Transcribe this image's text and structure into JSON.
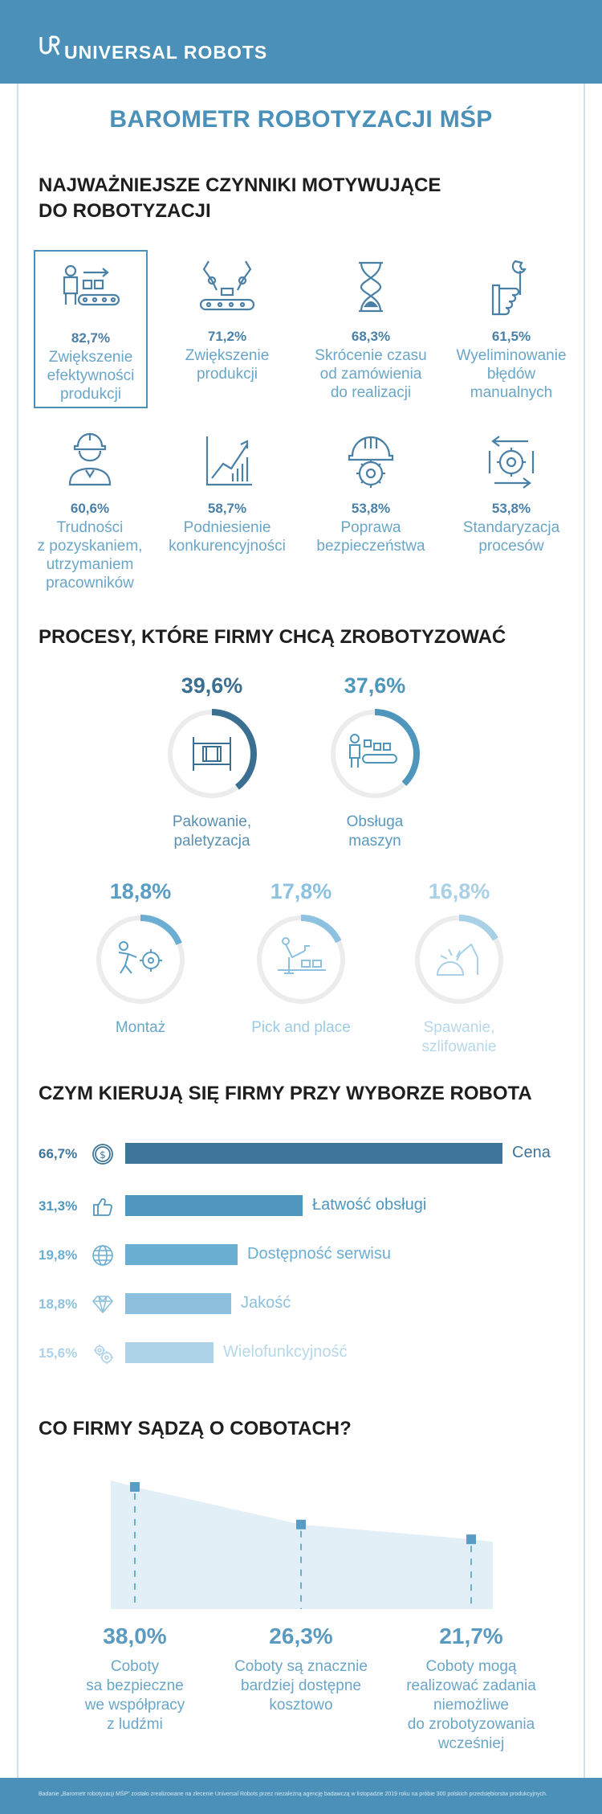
{
  "header": {
    "brand": "UNIVERSAL ROBOTS"
  },
  "title": "BAROMETR ROBOTYZACJI MŚP",
  "colors": {
    "brand": "#4a90b8",
    "dark": "#3a6f91",
    "mid": "#4f96bd",
    "light": "#a8cfe4"
  },
  "motivators": {
    "heading_line1": "NAJWAŻNIEJSZE CZYNNIKI MOTYWUJĄCE",
    "heading_line2": "DO ROBOTYZACJI",
    "items": [
      {
        "pct": "82,7%",
        "line1": "Zwiększenie",
        "line2": "efektywności",
        "line3": "produkcji",
        "line4": "",
        "icon": "worker-conveyor-icon",
        "highlighted": true
      },
      {
        "pct": "71,2%",
        "line1": "Zwiększenie",
        "line2": "produkcji",
        "line3": "",
        "line4": "",
        "icon": "robot-arms-conveyor-icon",
        "highlighted": false
      },
      {
        "pct": "68,3%",
        "line1": "Skrócenie czasu",
        "line2": "od zamówienia",
        "line3": "do realizacji",
        "line4": "",
        "icon": "hourglass-icon",
        "highlighted": false
      },
      {
        "pct": "61,5%",
        "line1": "Wyeliminowanie",
        "line2": "błędów",
        "line3": "manualnych",
        "line4": "",
        "icon": "hand-wrench-icon",
        "highlighted": false
      },
      {
        "pct": "60,6%",
        "line1": "Trudności",
        "line2": "z pozyskaniem,",
        "line3": "utrzymaniem",
        "line4": "pracowników",
        "icon": "worker-helmet-icon",
        "highlighted": false
      },
      {
        "pct": "58,7%",
        "line1": "Podniesienie",
        "line2": "konkurencyjności",
        "line3": "",
        "line4": "",
        "icon": "growth-chart-icon",
        "highlighted": false
      },
      {
        "pct": "53,8%",
        "line1": "Poprawa",
        "line2": "bezpieczeństwa",
        "line3": "",
        "line4": "",
        "icon": "helmet-gear-icon",
        "highlighted": false
      },
      {
        "pct": "53,8%",
        "line1": "Standaryzacja",
        "line2": "procesów",
        "line3": "",
        "line4": "",
        "icon": "gear-cycle-icon",
        "highlighted": false
      }
    ]
  },
  "processes": {
    "heading": "PROCESY, KTÓRE FIRMY CHCĄ ZROBOTYZOWAĆ",
    "items": [
      {
        "pct": "39,6%",
        "value": 39.6,
        "line1": "Pakowanie,",
        "line2": "paletyzacja",
        "icon": "pallet-icon",
        "tone": "dark"
      },
      {
        "pct": "37,6%",
        "value": 37.6,
        "line1": "Obsługa",
        "line2": "maszyn",
        "icon": "machine-tending-icon",
        "tone": "dark"
      },
      {
        "pct": "18,8%",
        "value": 18.8,
        "line1": "Montaż",
        "line2": "",
        "icon": "assembly-icon",
        "tone": "mid"
      },
      {
        "pct": "17,8%",
        "value": 17.8,
        "line1": "Pick and place",
        "line2": "",
        "icon": "pick-place-icon",
        "tone": "light"
      },
      {
        "pct": "16,8%",
        "value": 16.8,
        "line1": "Spawanie,",
        "line2": "szlifowanie",
        "icon": "welding-icon",
        "tone": "lighter"
      }
    ]
  },
  "choice": {
    "heading": "CZYM KIERUJĄ SIĘ FIRMY PRZY WYBORZE ROBOTA",
    "items": [
      {
        "pct": "66,7%",
        "value": 66.7,
        "label": "Cena",
        "icon": "coin-icon",
        "color": "#3f7599"
      },
      {
        "pct": "31,3%",
        "value": 31.3,
        "label": "Łatwość obsługi",
        "icon": "thumbs-up-icon",
        "color": "#4f96bd"
      },
      {
        "pct": "19,8%",
        "value": 19.8,
        "label": "Dostępność serwisu",
        "icon": "globe-icon",
        "color": "#6aaed2"
      },
      {
        "pct": "18,8%",
        "value": 18.8,
        "label": "Jakość",
        "icon": "diamond-icon",
        "color": "#8dc0dd"
      },
      {
        "pct": "15,6%",
        "value": 15.6,
        "label": "Wielofunkcyjność",
        "icon": "gears-icon",
        "color": "#aed2e7"
      }
    ]
  },
  "cobots": {
    "heading": "CO FIRMY SĄDZĄ O COBOTACH?",
    "items": [
      {
        "pct": "38,0%",
        "value": 38.0,
        "line1": "Coboty",
        "line2": "sa bezpieczne",
        "line3": "we współpracy",
        "line4": "z ludźmi",
        "line5": ""
      },
      {
        "pct": "26,3%",
        "value": 26.3,
        "line1": "Coboty są znacznie",
        "line2": "bardziej dostępne",
        "line3": "kosztowo",
        "line4": "",
        "line5": ""
      },
      {
        "pct": "21,7%",
        "value": 21.7,
        "line1": "Coboty mogą",
        "line2": "realizować zadania",
        "line3": "niemożliwe",
        "line4": "do zrobotyzowania",
        "line5": "wcześniej"
      }
    ]
  },
  "footer": {
    "note": "Badanie „Barometr robotyzacji MŚP” zostało zrealizowane na zlecenie Universal Robots przez niezależną agencję badawczą w listopadzie 2019 roku na próbie 300 polskich przedsiębiorstw produkcyjnych."
  }
}
